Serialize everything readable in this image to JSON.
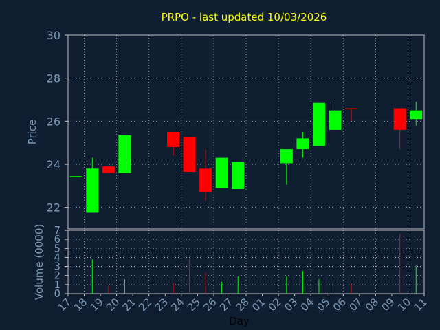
{
  "chart_data": {
    "type": "candlestick",
    "title": "PRPO - last updated 10/03/2026",
    "price_ylabel": "Price",
    "volume_ylabel": "Volume (0000)",
    "xlabel": "Day",
    "price_ylim": [
      21,
      30
    ],
    "price_yticks": [
      "30",
      "28",
      "26",
      "24",
      "22"
    ],
    "volume_ylim": [
      0,
      7
    ],
    "volume_yticks": [
      "7",
      "6",
      "5",
      "4",
      "3",
      "2",
      "1",
      "0"
    ],
    "x_tick_labels": [
      "17",
      "18",
      "19",
      "20",
      "21",
      "22",
      "23",
      "24",
      "25",
      "26",
      "27",
      "28",
      "01",
      "02",
      "03",
      "04",
      "05",
      "06",
      "07",
      "08",
      "09",
      "10",
      "11"
    ],
    "grid": true,
    "colors": {
      "up": "#00ff00",
      "down": "#ff0000",
      "background": "#0f1e30",
      "plot_bg": "#0f1e30",
      "grid": "#c0c0c0",
      "title": "#ffff00",
      "text": "#7c9ab8"
    },
    "candles": [
      {
        "day": "17",
        "open": 23.45,
        "high": 23.45,
        "low": 23.45,
        "close": 23.45,
        "volume": 0.0
      },
      {
        "day": "18",
        "open": 21.75,
        "high": 24.3,
        "low": 21.75,
        "close": 23.8,
        "volume": 3.8
      },
      {
        "day": "19",
        "open": 23.9,
        "high": 23.9,
        "low": 23.6,
        "close": 23.6,
        "volume": 0.9
      },
      {
        "day": "20",
        "open": 23.6,
        "high": 25.35,
        "low": 23.6,
        "close": 25.35,
        "volume": 1.6
      },
      {
        "day": "23",
        "open": 25.5,
        "high": 25.5,
        "low": 24.4,
        "close": 24.8,
        "volume": 1.2
      },
      {
        "day": "24",
        "open": 25.25,
        "high": 25.25,
        "low": 23.65,
        "close": 23.65,
        "volume": 3.8
      },
      {
        "day": "25",
        "open": 23.8,
        "high": 24.7,
        "low": 22.3,
        "close": 22.7,
        "volume": 2.3
      },
      {
        "day": "26",
        "open": 22.9,
        "high": 24.3,
        "low": 22.9,
        "close": 24.3,
        "volume": 1.3
      },
      {
        "day": "27",
        "open": 22.85,
        "high": 24.1,
        "low": 22.85,
        "close": 24.1,
        "volume": 1.9
      },
      {
        "day": "02",
        "open": 24.05,
        "high": 24.7,
        "low": 23.05,
        "close": 24.7,
        "volume": 1.9
      },
      {
        "day": "03",
        "open": 24.7,
        "high": 25.5,
        "low": 24.3,
        "close": 25.2,
        "volume": 2.5
      },
      {
        "day": "04",
        "open": 24.85,
        "high": 26.85,
        "low": 24.85,
        "close": 26.85,
        "volume": 1.6
      },
      {
        "day": "05",
        "open": 25.6,
        "high": 27.0,
        "low": 25.6,
        "close": 26.5,
        "volume": 0.9
      },
      {
        "day": "06",
        "open": 26.6,
        "high": 26.6,
        "low": 26.0,
        "close": 26.55,
        "volume": 1.1
      },
      {
        "day": "09",
        "open": 26.6,
        "high": 26.6,
        "low": 24.7,
        "close": 25.6,
        "volume": 6.6
      },
      {
        "day": "10",
        "open": 26.1,
        "high": 26.9,
        "low": 25.8,
        "close": 26.5,
        "volume": 3.1
      }
    ]
  }
}
